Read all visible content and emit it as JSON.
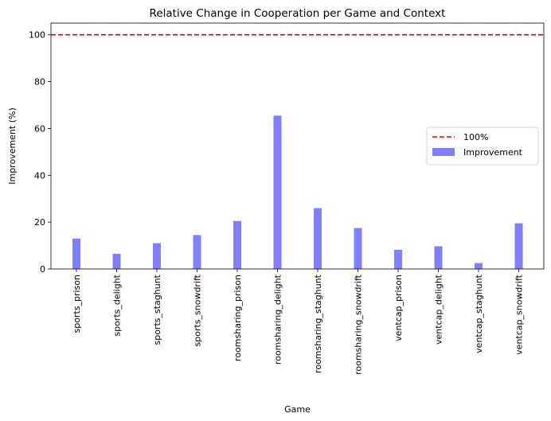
{
  "chart_data": {
    "type": "bar",
    "title": "Relative Change in Cooperation per Game and Context",
    "xlabel": "Game",
    "ylabel": "Improvement (%)",
    "ylim": [
      0,
      105
    ],
    "yticks": [
      0,
      20,
      40,
      60,
      80,
      100
    ],
    "grid": false,
    "legend_position": "center-right",
    "categories": [
      "sports_prison",
      "sports_delight",
      "sports_staghunt",
      "sports_snowdrift",
      "roomsharing_prison",
      "roomsharing_delight",
      "roomsharing_staghunt",
      "roomsharing_snowdrift",
      "ventcap_prison",
      "ventcap_delight",
      "ventcap_staghunt",
      "ventcap_snowdrift"
    ],
    "series": [
      {
        "name": "Improvement",
        "color": "#8080ff",
        "values": [
          13.0,
          6.5,
          11.0,
          14.5,
          20.5,
          65.5,
          26.0,
          17.5,
          8.2,
          9.7,
          2.5,
          19.5
        ]
      }
    ],
    "reference_line": {
      "name": "100%",
      "value": 100,
      "color": "#dd0000",
      "style": "dashed"
    }
  }
}
